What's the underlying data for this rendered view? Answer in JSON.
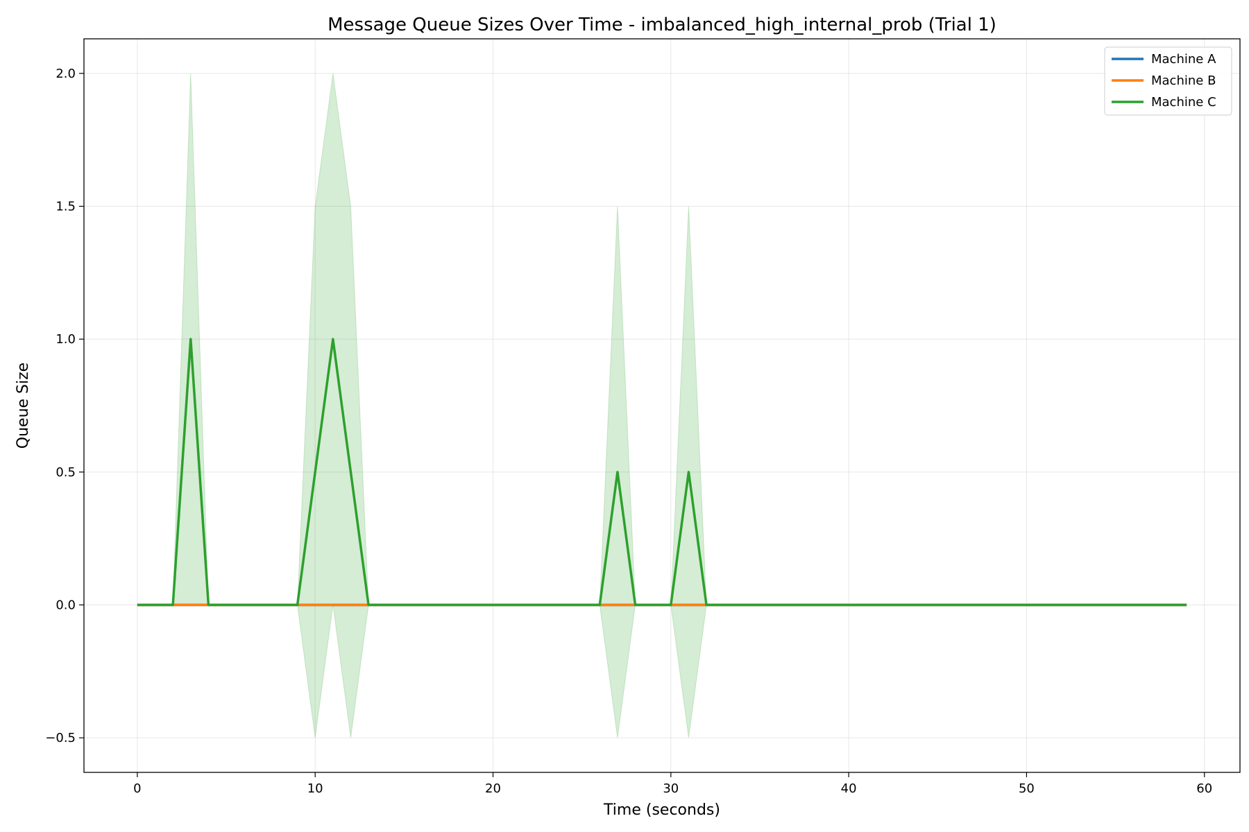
{
  "chart_data": {
    "type": "line",
    "title": "Message Queue Sizes Over Time - imbalanced_high_internal_prob (Trial 1)",
    "xlabel": "Time (seconds)",
    "ylabel": "Queue Size",
    "xlim": [
      -3,
      62
    ],
    "ylim": [
      -0.63,
      2.13
    ],
    "x_ticks": [
      0,
      10,
      20,
      30,
      40,
      50,
      60
    ],
    "y_ticks": [
      -0.5,
      0.0,
      0.5,
      1.0,
      1.5,
      2.0
    ],
    "x_tick_labels": [
      "0",
      "10",
      "20",
      "30",
      "40",
      "50",
      "60"
    ],
    "y_tick_labels": [
      "−0.5",
      "0.0",
      "0.5",
      "1.0",
      "1.5",
      "2.0"
    ],
    "grid": true,
    "legend_position": "top-right",
    "x": [
      0,
      1,
      2,
      3,
      4,
      5,
      6,
      7,
      8,
      9,
      10,
      11,
      12,
      13,
      14,
      15,
      16,
      17,
      18,
      19,
      20,
      21,
      22,
      23,
      24,
      25,
      26,
      27,
      28,
      29,
      30,
      31,
      32,
      33,
      34,
      35,
      36,
      37,
      38,
      39,
      40,
      41,
      42,
      43,
      44,
      45,
      46,
      47,
      48,
      49,
      50,
      51,
      52,
      53,
      54,
      55,
      56,
      57,
      58,
      59
    ],
    "series": [
      {
        "name": "Machine A",
        "color": "#1f77b4",
        "values": [
          0,
          0,
          0,
          0,
          0,
          0,
          0,
          0,
          0,
          0,
          0,
          0,
          0,
          0,
          0,
          0,
          0,
          0,
          0,
          0,
          0,
          0,
          0,
          0,
          0,
          0,
          0,
          0,
          0,
          0,
          0,
          0,
          0,
          0,
          0,
          0,
          0,
          0,
          0,
          0,
          0,
          0,
          0,
          0,
          0,
          0,
          0,
          0,
          0,
          0,
          0,
          0,
          0,
          0,
          0,
          0,
          0,
          0,
          0,
          0
        ]
      },
      {
        "name": "Machine B",
        "color": "#ff7f0e",
        "values": [
          0,
          0,
          0,
          0,
          0,
          0,
          0,
          0,
          0,
          0,
          0,
          0,
          0,
          0,
          0,
          0,
          0,
          0,
          0,
          0,
          0,
          0,
          0,
          0,
          0,
          0,
          0,
          0,
          0,
          0,
          0,
          0,
          0,
          0,
          0,
          0,
          0,
          0,
          0,
          0,
          0,
          0,
          0,
          0,
          0,
          0,
          0,
          0,
          0,
          0,
          0,
          0,
          0,
          0,
          0,
          0,
          0,
          0,
          0,
          0
        ]
      },
      {
        "name": "Machine C",
        "color": "#2ca02c",
        "values": [
          0,
          0,
          0,
          1,
          0,
          0,
          0,
          0,
          0,
          0,
          0.5,
          1,
          0.5,
          0,
          0,
          0,
          0,
          0,
          0,
          0,
          0,
          0,
          0,
          0,
          0,
          0,
          0,
          0.5,
          0,
          0,
          0,
          0.5,
          0,
          0,
          0,
          0,
          0,
          0,
          0,
          0,
          0,
          0,
          0,
          0,
          0,
          0,
          0,
          0,
          0,
          0,
          0,
          0,
          0,
          0,
          0,
          0,
          0,
          0,
          0,
          0
        ],
        "band_upper": [
          0,
          0,
          0,
          2,
          0,
          0,
          0,
          0,
          0,
          0,
          1.5,
          2,
          1.5,
          0,
          0,
          0,
          0,
          0,
          0,
          0,
          0,
          0,
          0,
          0,
          0,
          0,
          0,
          1.5,
          0,
          0,
          0,
          1.5,
          0,
          0,
          0,
          0,
          0,
          0,
          0,
          0,
          0,
          0,
          0,
          0,
          0,
          0,
          0,
          0,
          0,
          0,
          0,
          0,
          0,
          0,
          0,
          0,
          0,
          0,
          0,
          0
        ],
        "band_lower": [
          0,
          0,
          0,
          0,
          0,
          0,
          0,
          0,
          0,
          0,
          -0.5,
          0,
          -0.5,
          0,
          0,
          0,
          0,
          0,
          0,
          0,
          0,
          0,
          0,
          0,
          0,
          0,
          0,
          -0.5,
          0,
          0,
          0,
          -0.5,
          0,
          0,
          0,
          0,
          0,
          0,
          0,
          0,
          0,
          0,
          0,
          0,
          0,
          0,
          0,
          0,
          0,
          0,
          0,
          0,
          0,
          0,
          0,
          0,
          0,
          0,
          0,
          0
        ]
      }
    ]
  }
}
